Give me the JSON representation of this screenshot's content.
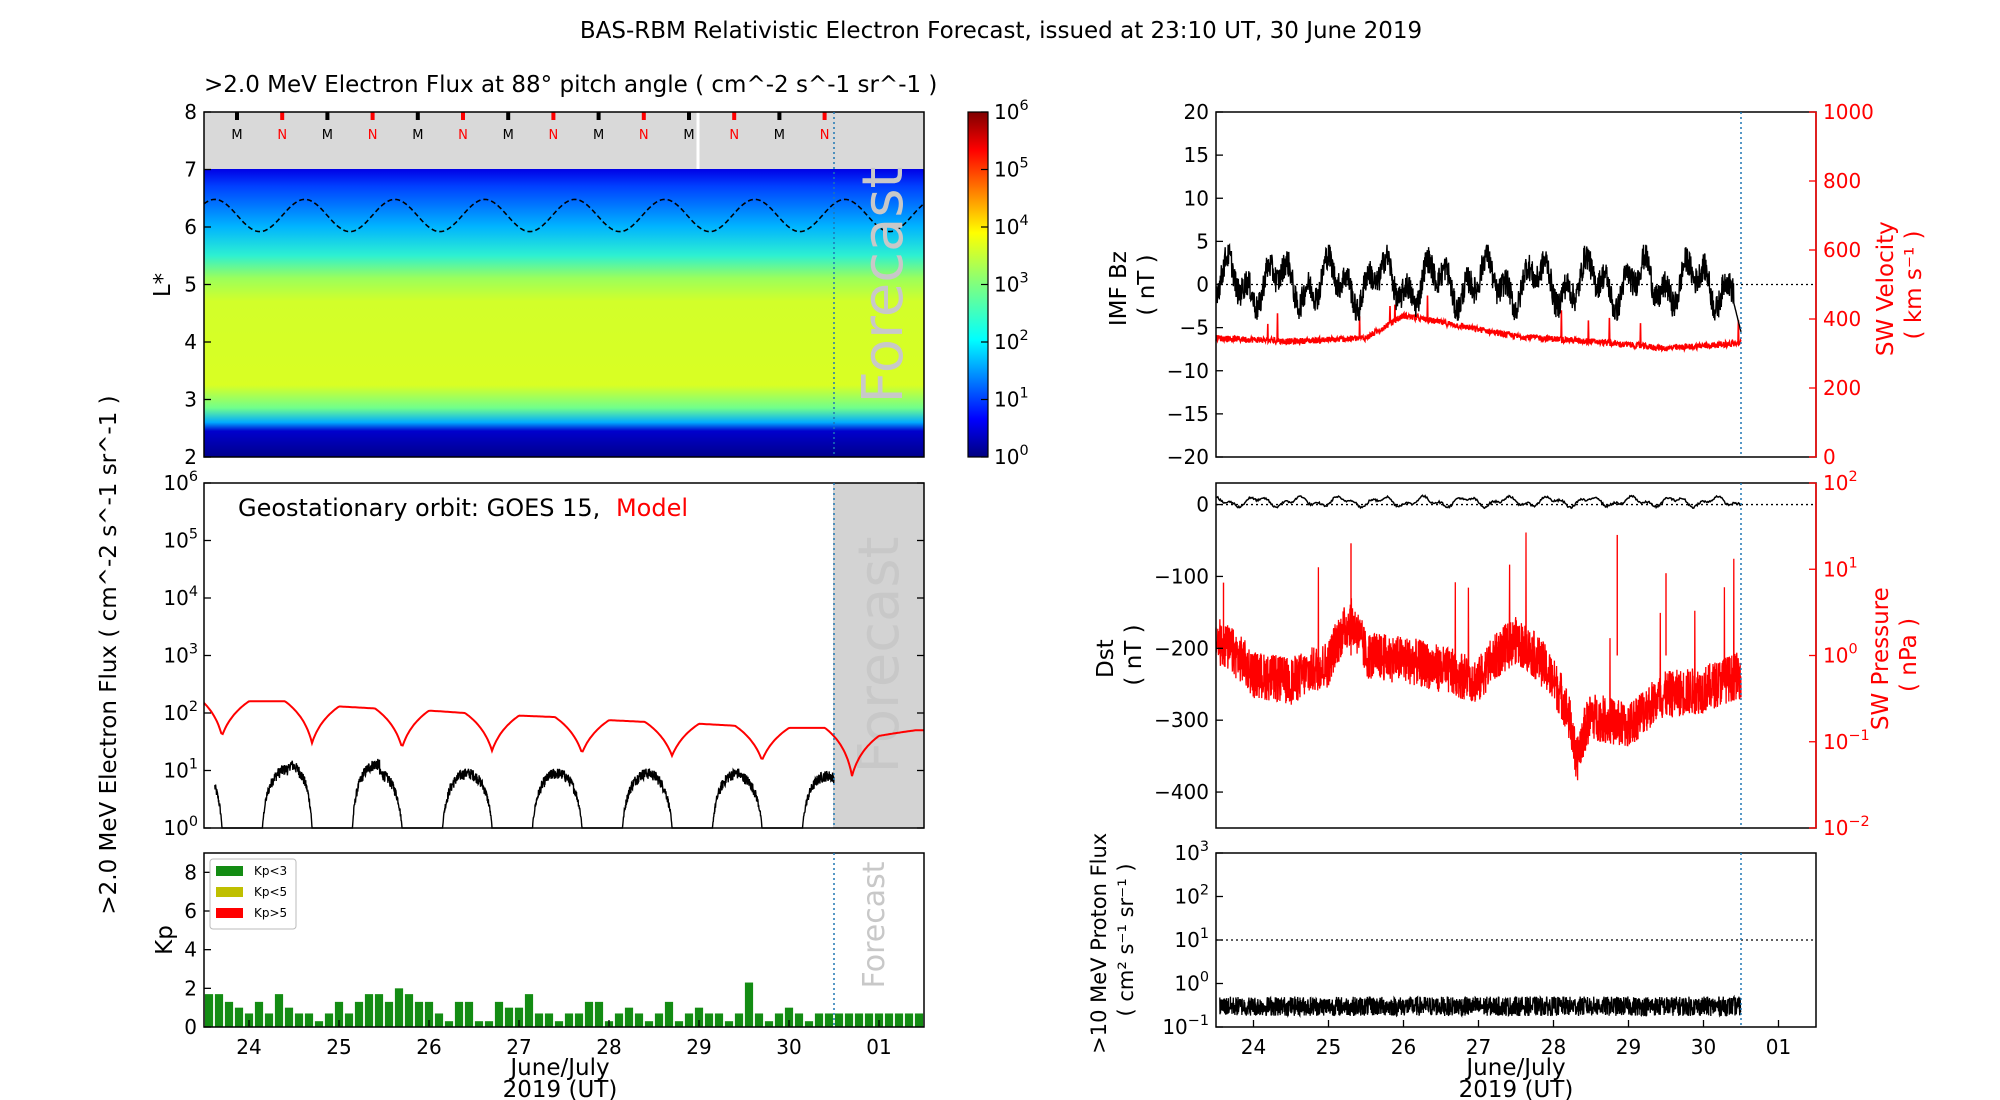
{
  "figure": {
    "title": "BAS-RBM Relativistic Electron Forecast, issued at 23:10 UT, 30 June 2019"
  },
  "xaxis": {
    "tick_labels": [
      "24",
      "25",
      "26",
      "27",
      "28",
      "29",
      "30",
      "01"
    ],
    "label_line1": "June/July",
    "label_line2": "2019 (UT)"
  },
  "forecast_label": "Forecast",
  "chart_data": [
    {
      "id": "lstar_flux_map",
      "type": "heatmap",
      "title": ">2.0 MeV Electron Flux at 88° pitch angle ( cm^-2 s^-1 sr^-1 )",
      "ylabel": "L*",
      "ylim": [
        2,
        8
      ],
      "yticks": [
        "2",
        "3",
        "4",
        "5",
        "6",
        "7",
        "8"
      ],
      "x_range_days": [
        "23 June 12:00",
        "1 July 12:00"
      ],
      "forecast_start": "30 June 12:00",
      "colorbar": {
        "scale": "log",
        "range": [
          1,
          1000000
        ],
        "tick_labels": [
          "10^0",
          "10^1",
          "10^2",
          "10^3",
          "10^4",
          "10^5",
          "10^6"
        ],
        "colormap": "jet"
      },
      "orbit_markers": [
        "M",
        "N",
        "M",
        "N",
        "M",
        "N",
        "M",
        "N",
        "M",
        "N",
        "M",
        "N",
        "M",
        "N"
      ],
      "profile_note": "flux high (~10^4) for L* 3.3–5.5, falls to ~10^1 near L*=6.8; low (<10^1) for L*<3.2",
      "dashed_contour_lstar": {
        "mean": 6.2,
        "amplitude": 0.28,
        "period_days": 1
      }
    },
    {
      "id": "geo_flux",
      "type": "line",
      "ylabel": ">2.0 MeV Electron Flux ( cm^-2 s^-1 sr^-1 )",
      "yscale": "log",
      "ylim": [
        1,
        1000000
      ],
      "yticks": [
        "10^0",
        "10^1",
        "10^2",
        "10^3",
        "10^4",
        "10^5",
        "10^6"
      ],
      "annotation_prefix": "Geostationary orbit:   GOES 15,",
      "annotation_model": "Model",
      "series": [
        {
          "name": "GOES 15",
          "color": "#000000",
          "daily_peaks": [
            13,
            16,
            11,
            11,
            11,
            11,
            10
          ]
        },
        {
          "name": "Model",
          "color": "#ff0000",
          "x": [
            23.5,
            23.7,
            24.0,
            24.4,
            24.7,
            25.0,
            25.4,
            25.7,
            26.0,
            26.4,
            26.7,
            27.0,
            27.4,
            27.7,
            28.0,
            28.4,
            28.7,
            29.0,
            29.4,
            29.7,
            30.0,
            30.4,
            30.7,
            31.0,
            31.4
          ],
          "y": [
            150,
            40,
            160,
            160,
            30,
            130,
            120,
            25,
            110,
            100,
            22,
            90,
            85,
            20,
            75,
            70,
            18,
            65,
            60,
            15,
            55,
            55,
            8,
            40,
            50
          ]
        }
      ]
    },
    {
      "id": "kp_index",
      "type": "bar",
      "ylabel": "Kp",
      "ylim": [
        0,
        9
      ],
      "yticks": [
        "0",
        "2",
        "4",
        "6",
        "8"
      ],
      "legend": [
        {
          "label": "Kp<3",
          "color": "#138c13"
        },
        {
          "label": "Kp<5",
          "color": "#bfbf00"
        },
        {
          "label": "Kp>5",
          "color": "#ff0000"
        }
      ],
      "bar_interval_hours": 3,
      "values": [
        1.7,
        1.7,
        1.3,
        1.0,
        0.7,
        1.3,
        0.7,
        1.7,
        1.0,
        0.7,
        0.7,
        0.3,
        0.7,
        1.3,
        0.7,
        1.3,
        1.7,
        1.7,
        1.3,
        2.0,
        1.7,
        1.3,
        1.3,
        0.7,
        0.3,
        1.3,
        1.3,
        0.3,
        0.3,
        1.3,
        1.0,
        1.0,
        1.7,
        0.7,
        0.7,
        0.3,
        0.7,
        0.7,
        1.3,
        1.3,
        0.3,
        0.7,
        1.0,
        0.7,
        0.3,
        0.7,
        1.3,
        0.3,
        0.7,
        1.0,
        0.7,
        0.7,
        0.3,
        0.7,
        2.3,
        0.7,
        0.3,
        0.7,
        1.0,
        0.7,
        0.3,
        0.7,
        0.7,
        0.7,
        0.7,
        0.7,
        0.7,
        0.7,
        0.7,
        0.7,
        0.7,
        0.7
      ]
    },
    {
      "id": "imf_sw_velocity",
      "type": "line",
      "ylabel_left": "IMF Bz\n( nT )",
      "ylabel_right": "SW Velocity\n( km s^-1 )",
      "ylim_left": [
        -20,
        20
      ],
      "yticks_left": [
        "−20",
        "−15",
        "−10",
        "−5",
        "0",
        "5",
        "10",
        "15",
        "20"
      ],
      "ylim_right": [
        0,
        1000
      ],
      "yticks_right": [
        "0",
        "200",
        "400",
        "600",
        "800",
        "1000"
      ],
      "series": [
        {
          "name": "IMF Bz",
          "color": "#000000",
          "typical_range": [
            -4,
            3.5
          ]
        },
        {
          "name": "SW Velocity",
          "color": "#ff0000",
          "x": [
            23.5,
            24.5,
            25.5,
            26.0,
            26.5,
            27.5,
            28.5,
            29.5,
            30.5
          ],
          "y": [
            345,
            335,
            345,
            410,
            390,
            350,
            335,
            315,
            330
          ]
        }
      ]
    },
    {
      "id": "dst_sw_pressure",
      "type": "line",
      "ylabel_left": "Dst\n( nT )",
      "ylabel_right": "SW Pressure\n( nPa )",
      "ylim_left": [
        -450,
        30
      ],
      "yticks_left": [
        "−400",
        "−300",
        "−200",
        "−100",
        "0"
      ],
      "ylim_right": [
        0.01,
        100
      ],
      "yticks_right": [
        "10^-2",
        "10^-1",
        "10^0",
        "10^1",
        "10^2"
      ],
      "series": [
        {
          "name": "Dst",
          "color": "#000000",
          "typical_range": [
            -8,
            15
          ]
        },
        {
          "name": "SW Pressure",
          "color": "#ff0000",
          "x": [
            23.5,
            24.0,
            24.5,
            25.0,
            25.3,
            25.5,
            26.0,
            26.5,
            27.0,
            27.5,
            28.0,
            28.3,
            28.5,
            29.0,
            29.5,
            30.0,
            30.5
          ],
          "y": [
            1.5,
            0.6,
            0.5,
            0.8,
            2.5,
            1.0,
            0.9,
            0.7,
            0.5,
            1.5,
            0.5,
            0.05,
            0.2,
            0.15,
            0.35,
            0.4,
            0.6
          ]
        }
      ]
    },
    {
      "id": "proton_flux",
      "type": "line",
      "ylabel": ">10 MeV Proton Flux\n( cm^2 s^-1 sr^-1 )",
      "yscale": "log",
      "ylim": [
        0.1,
        1000
      ],
      "yticks": [
        "10^-1",
        "10^0",
        "10^1",
        "10^2",
        "10^3"
      ],
      "threshold": 10,
      "series": [
        {
          "name": ">10 MeV Proton Flux",
          "color": "#000000",
          "typical_range": [
            0.2,
            0.5
          ]
        }
      ]
    }
  ]
}
